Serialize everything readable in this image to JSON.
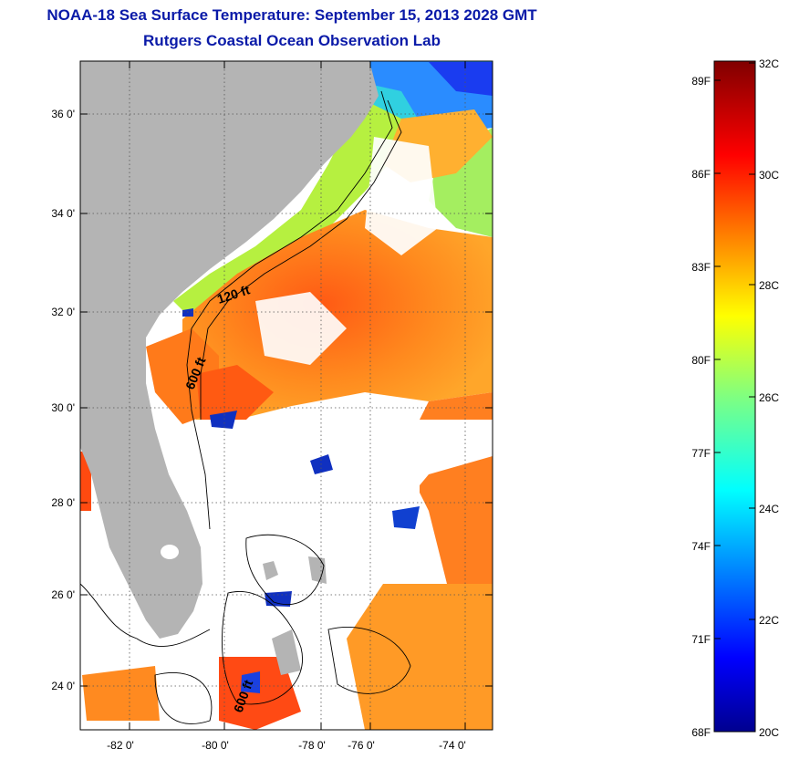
{
  "header": {
    "title": "NOAA-18 Sea Surface Temperature:  September 15, 2013 2028 GMT",
    "subtitle": "Rutgers Coastal Ocean Observation Lab"
  },
  "map": {
    "lat_labels": [
      "36 0'",
      "34 0'",
      "32 0'",
      "30 0'",
      "28 0'",
      "26 0'",
      "24 0'"
    ],
    "lon_labels": [
      "-82 0'",
      "-80 0'",
      "-78 0'",
      "-76 0'",
      "-74 0'"
    ],
    "contours": [
      "120 ft",
      "600 ft",
      "600 ft"
    ],
    "colors": {
      "land": "#b4b4b4",
      "cloud": "#ffffff",
      "grid": "#555555"
    }
  },
  "colorbar": {
    "fahrenheit": [
      "89F",
      "86F",
      "83F",
      "80F",
      "77F",
      "74F",
      "71F",
      "68F"
    ],
    "celsius": [
      "32C",
      "30C",
      "28C",
      "26C",
      "24C",
      "22C",
      "20C"
    ],
    "range_c": [
      20,
      32
    ],
    "colormap": "jet"
  }
}
